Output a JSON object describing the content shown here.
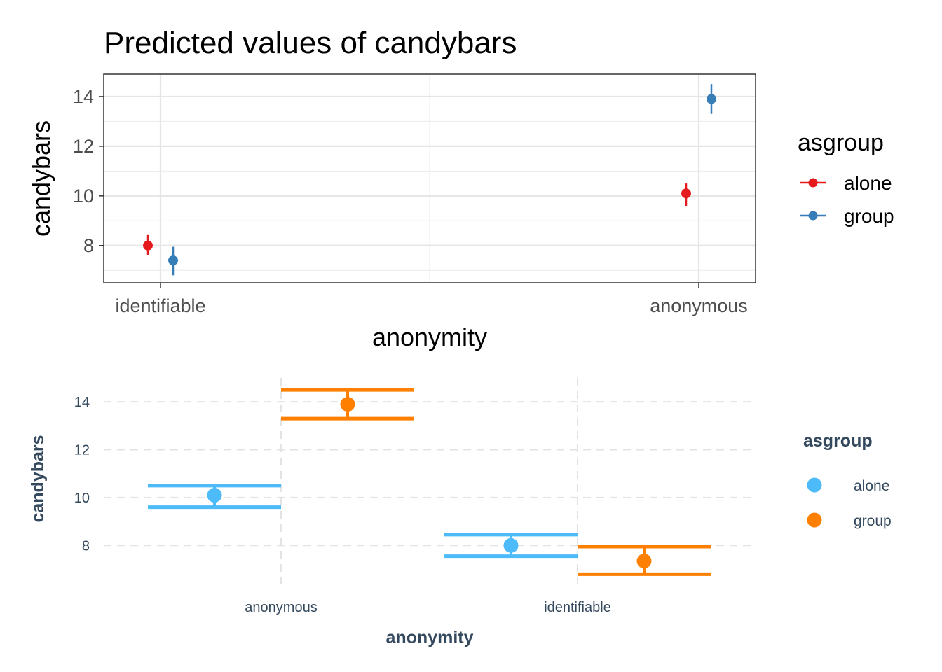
{
  "chart_data": [
    {
      "type": "scatter",
      "title": "Predicted values of candybars",
      "xlabel": "anonymity",
      "ylabel": "candybars",
      "categories": [
        "identifiable",
        "anonymous"
      ],
      "ylim": [
        6.5,
        14.9
      ],
      "yticks": [
        "8",
        "10",
        "12",
        "14"
      ],
      "legend_title": "asgroup",
      "legend_position": "right",
      "grid": true,
      "series": [
        {
          "name": "alone",
          "color": "#e41a1c",
          "values": [
            8.0,
            10.1
          ],
          "lower": [
            7.6,
            9.6
          ],
          "upper": [
            8.45,
            10.5
          ]
        },
        {
          "name": "group",
          "color": "#377eb8",
          "values": [
            7.4,
            13.9
          ],
          "lower": [
            6.8,
            13.3
          ],
          "upper": [
            7.95,
            14.5
          ]
        }
      ]
    },
    {
      "type": "scatter",
      "title": "",
      "xlabel": "anonymity",
      "ylabel": "candybars",
      "categories": [
        "anonymous",
        "identifiable"
      ],
      "ylim": [
        6.4,
        15.0
      ],
      "yticks": [
        "8",
        "10",
        "12",
        "14"
      ],
      "legend_title": "asgroup",
      "legend_position": "right",
      "grid": true,
      "series": [
        {
          "name": "alone",
          "color": "#4dbbf9",
          "values": [
            10.1,
            8.0
          ],
          "lower": [
            9.6,
            7.55
          ],
          "upper": [
            10.5,
            8.45
          ]
        },
        {
          "name": "group",
          "color": "#ff7f00",
          "values": [
            13.9,
            7.35
          ],
          "lower": [
            13.3,
            6.8
          ],
          "upper": [
            14.5,
            7.95
          ]
        }
      ]
    }
  ]
}
